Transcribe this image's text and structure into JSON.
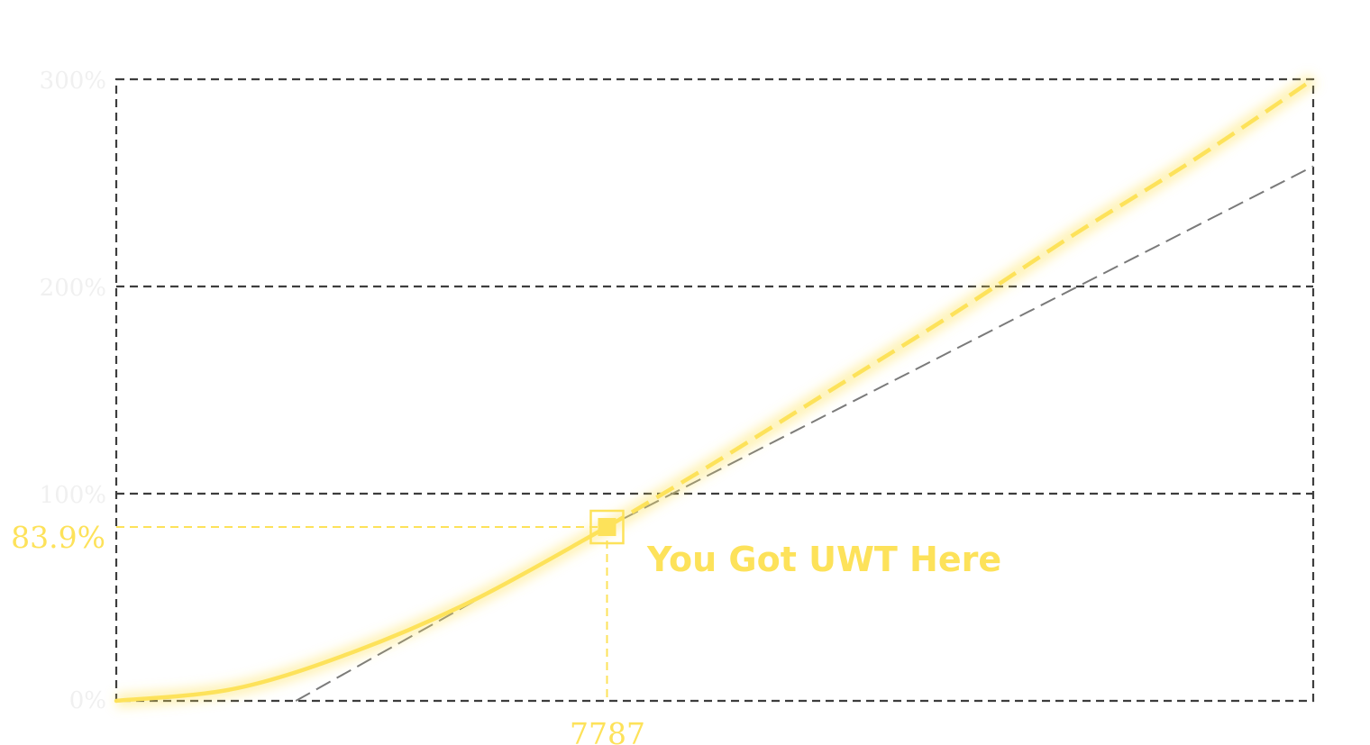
{
  "chart_data": {
    "type": "line",
    "title": "",
    "xlabel": "",
    "ylabel": "",
    "y_ticks": [
      "0%",
      "100%",
      "200%",
      "300%"
    ],
    "ylim": [
      0,
      300
    ],
    "grid": true,
    "series": [
      {
        "name": "",
        "style": "solid then dashed beyond marker",
        "color": "#fde25a",
        "points_fraction_of_x_range": [
          [
            0,
            0
          ],
          [
            0.1,
            6
          ],
          [
            0.2,
            24
          ],
          [
            0.3,
            49
          ],
          [
            0.41,
            83.9
          ],
          [
            0.5,
            115
          ],
          [
            0.6,
            151
          ],
          [
            0.7,
            187
          ],
          [
            0.8,
            225
          ],
          [
            0.9,
            261
          ],
          [
            1.0,
            300
          ]
        ]
      },
      {
        "name": "",
        "style": "dashed tangent",
        "color": "#7a7a7a",
        "points_fraction_of_x_range": [
          [
            0.15,
            0
          ],
          [
            0.41,
            83.9
          ],
          [
            1.0,
            258
          ]
        ]
      }
    ],
    "highlight": {
      "x_label": "7787",
      "y_value": 83.9,
      "y_label": "83.9%",
      "annotation": "You Got UWT Here"
    },
    "colors": {
      "accent": "#fde25a",
      "grid": "#3d3d3d",
      "tangent": "#7a7a7a",
      "tick_label": "#f0f0f0"
    }
  }
}
